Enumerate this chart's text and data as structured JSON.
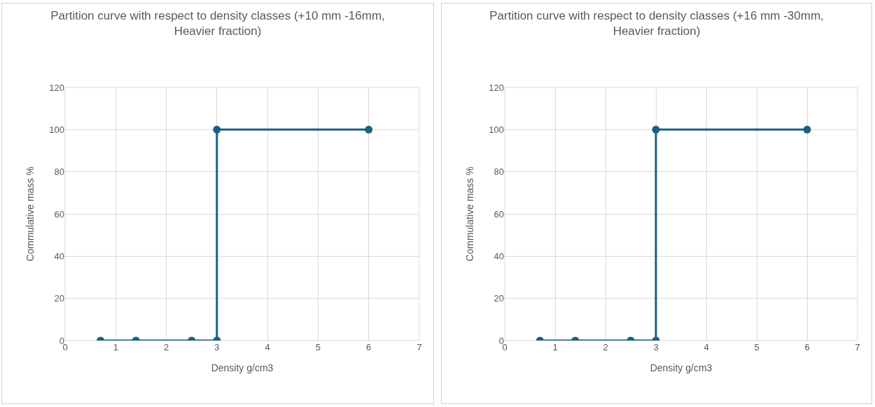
{
  "chart_data": [
    {
      "type": "line",
      "title": "Partition curve with respect to density classes (+10 mm -16mm, Heavier fraction)",
      "xlabel": "Density g/cm3",
      "ylabel": "Commulative mass %",
      "x": [
        0.7,
        1.4,
        2.5,
        3,
        3,
        6
      ],
      "series": [
        {
          "color": "#1a5f85",
          "values": [
            0,
            0,
            0,
            0,
            100,
            100
          ]
        }
      ],
      "xlim": [
        0,
        7
      ],
      "xticks": [
        0,
        1,
        2,
        3,
        4,
        5,
        6,
        7
      ],
      "ylim": [
        0,
        120
      ],
      "yticks": [
        0,
        20,
        40,
        60,
        80,
        100,
        120
      ],
      "grid": true,
      "marker": "circle",
      "line_style": "solid"
    },
    {
      "type": "line",
      "title": "Partition curve with respect to density classes (+16 mm -30mm, Heavier fraction)",
      "xlabel": "Density g/cm3",
      "ylabel": "Commulative mass %",
      "x": [
        0.7,
        1.4,
        2.5,
        3,
        3,
        6
      ],
      "series": [
        {
          "color": "#1a5f85",
          "values": [
            0,
            0,
            0,
            0,
            100,
            100
          ]
        }
      ],
      "xlim": [
        0,
        7
      ],
      "xticks": [
        0,
        1,
        2,
        3,
        4,
        5,
        6,
        7
      ],
      "ylim": [
        0,
        120
      ],
      "yticks": [
        0,
        20,
        40,
        60,
        80,
        100,
        120
      ],
      "grid": true,
      "marker": "circle",
      "line_style": "solid"
    }
  ]
}
